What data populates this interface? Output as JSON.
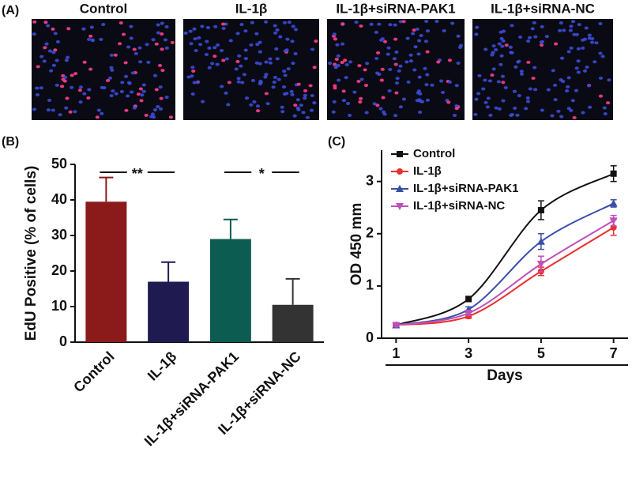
{
  "panel_labels": [
    "(A)",
    "(B)",
    "(C)"
  ],
  "images": [
    {
      "title": "Control"
    },
    {
      "title": "IL-1β"
    },
    {
      "title": "IL-1β+siRNA-PAK1"
    },
    {
      "title": "IL-1β+siRNA-NC"
    }
  ],
  "chart_data": [
    {
      "type": "bar",
      "y_label": "EdU Positive (% of cells)",
      "categories": [
        "Control",
        "IL-1β",
        "IL-1β+siRNA-PAK1",
        "IL-1β+siRNA-NC"
      ],
      "values": [
        39.5,
        17,
        29,
        10.5
      ],
      "errors": [
        6.8,
        5.5,
        5.5,
        7.3
      ],
      "colors": [
        "#8b1a1a",
        "#1f1a4f",
        "#0d5c52",
        "#333333"
      ],
      "ylim": [
        0,
        50
      ],
      "yticks": [
        0,
        10,
        20,
        30,
        40,
        50
      ],
      "significance": [
        {
          "from": 0,
          "to": 1,
          "label": "**"
        },
        {
          "from": 2,
          "to": 3,
          "label": "*"
        }
      ]
    },
    {
      "type": "line",
      "x_label": "Days",
      "y_label": "OD 450 mm",
      "x": [
        1,
        3,
        5,
        7
      ],
      "xlim": [
        0.6,
        7.4
      ],
      "xticks": [
        1,
        3,
        5,
        7
      ],
      "ylim": [
        0,
        3.6
      ],
      "yticks": [
        0,
        1,
        2,
        3
      ],
      "legend": "upper-left",
      "series": [
        {
          "name": "Control",
          "color": "#111111",
          "marker": "square",
          "values": [
            0.25,
            0.75,
            2.45,
            3.15
          ],
          "errors": [
            0.03,
            0.05,
            0.18,
            0.15
          ]
        },
        {
          "name": "IL-1β",
          "color": "#e8302e",
          "marker": "circle",
          "values": [
            0.25,
            0.42,
            1.28,
            2.12
          ],
          "errors": [
            0.03,
            0.04,
            0.08,
            0.15
          ]
        },
        {
          "name": "IL-1β+siRNA-PAK1",
          "color": "#3a4fa8",
          "marker": "triangle",
          "values": [
            0.25,
            0.55,
            1.85,
            2.58
          ],
          "errors": [
            0.03,
            0.05,
            0.15,
            0.07
          ]
        },
        {
          "name": "IL-1β+siRNA-NC",
          "color": "#c050b8",
          "marker": "triangle-down",
          "values": [
            0.25,
            0.48,
            1.42,
            2.25
          ],
          "errors": [
            0.03,
            0.04,
            0.15,
            0.1
          ]
        }
      ]
    }
  ]
}
